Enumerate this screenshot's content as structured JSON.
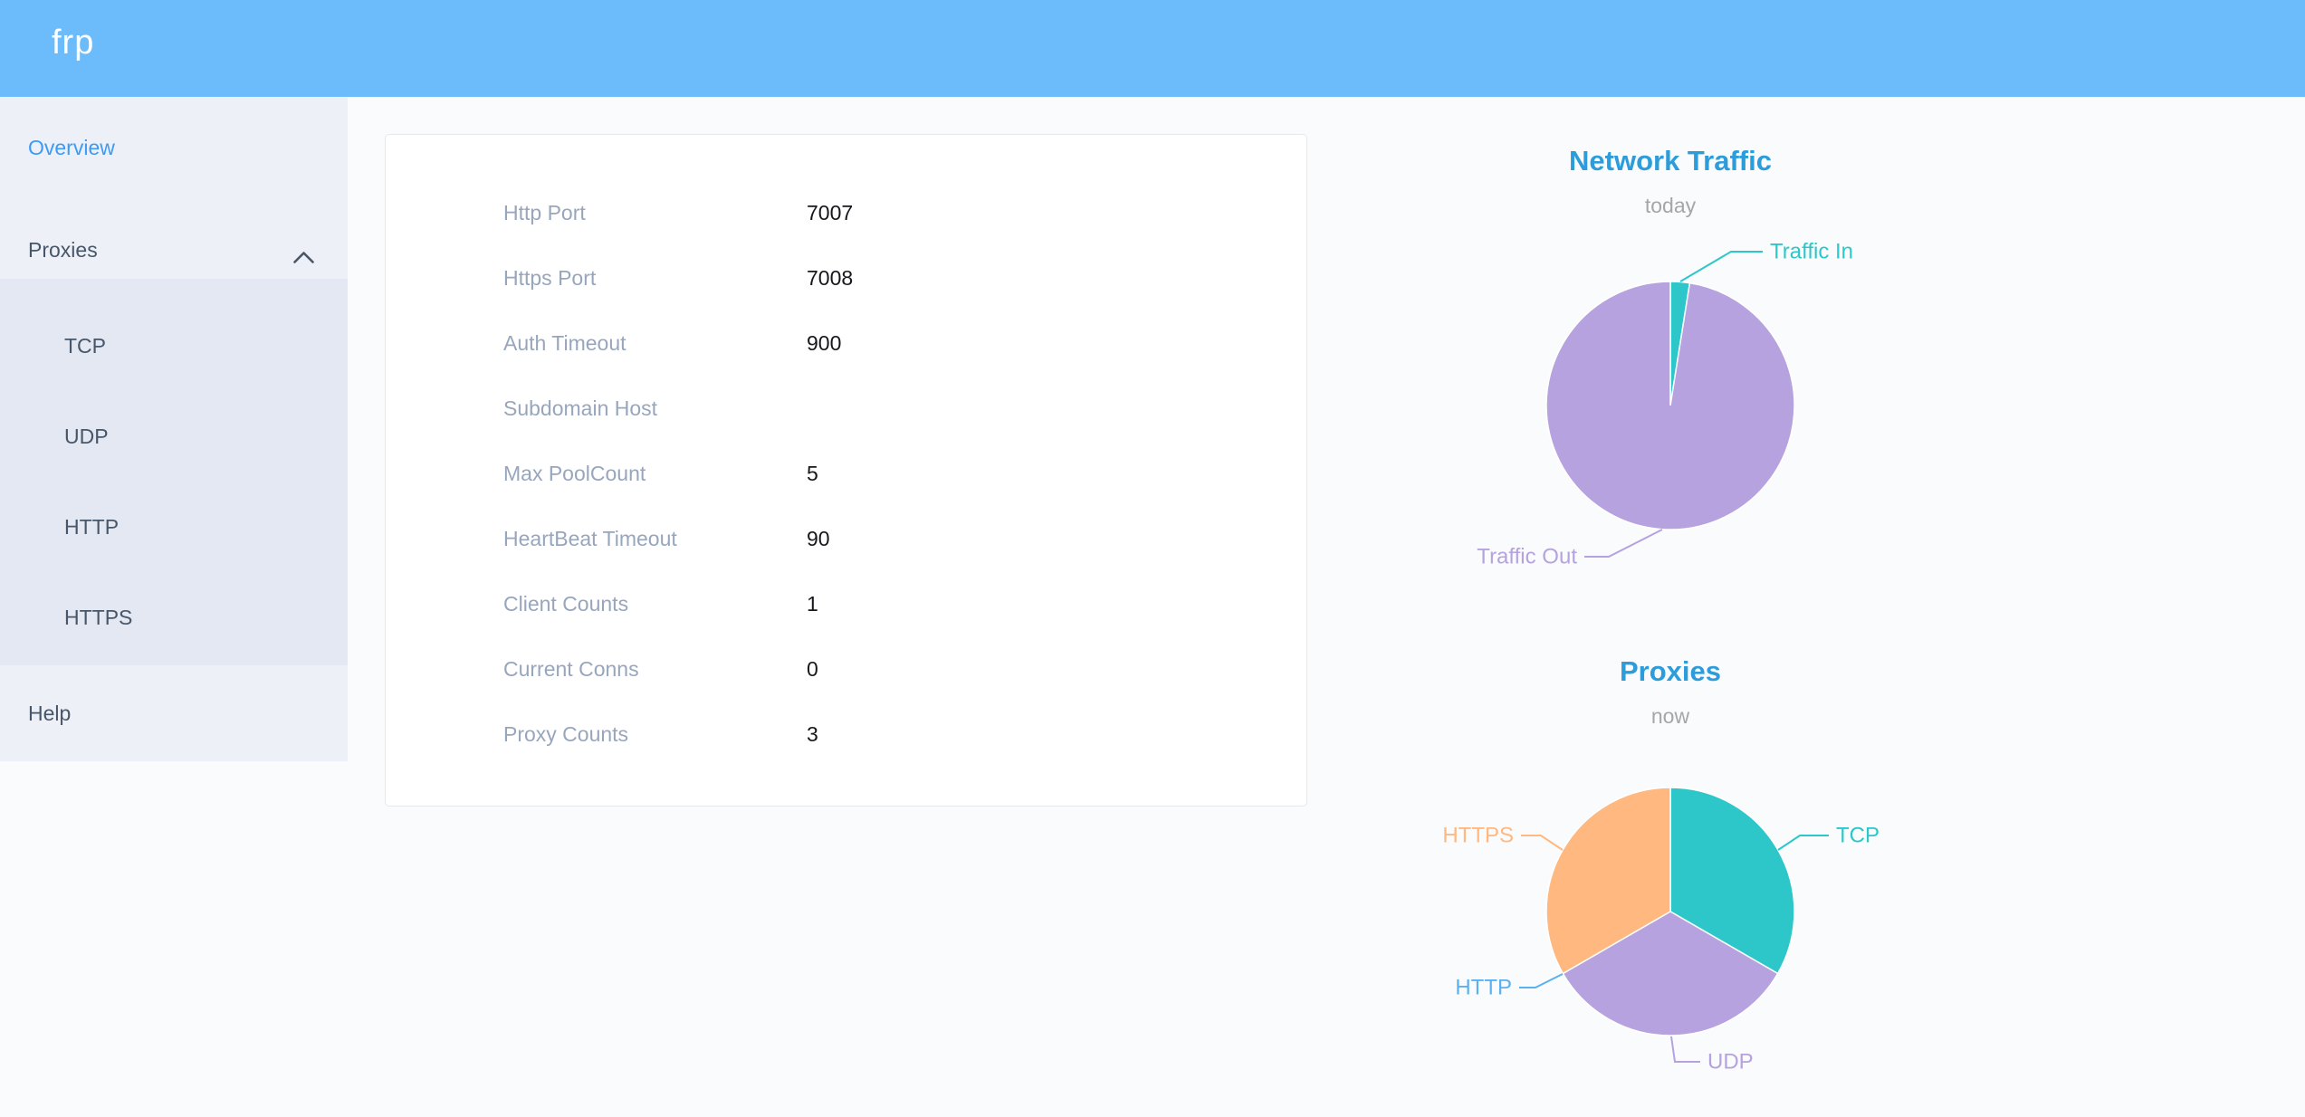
{
  "header": {
    "logo": "frp"
  },
  "sidebar": {
    "overview_label": "Overview",
    "proxies_label": "Proxies",
    "proxies_expanded": true,
    "children": [
      "TCP",
      "UDP",
      "HTTP",
      "HTTPS"
    ],
    "help_label": "Help"
  },
  "card": {
    "rows": [
      {
        "label": "Http Port",
        "value": "7007"
      },
      {
        "label": "Https Port",
        "value": "7008"
      },
      {
        "label": "Auth Timeout",
        "value": "900"
      },
      {
        "label": "Subdomain Host",
        "value": ""
      },
      {
        "label": "Max PoolCount",
        "value": "5"
      },
      {
        "label": "HeartBeat Timeout",
        "value": "90"
      },
      {
        "label": "Client Counts",
        "value": "1"
      },
      {
        "label": "Current Conns",
        "value": "0"
      },
      {
        "label": "Proxy Counts",
        "value": "3"
      }
    ]
  },
  "chart_data": [
    {
      "type": "pie",
      "title": "Network Traffic",
      "subtitle": "today",
      "legend_position": "callout-labels",
      "values_are": "percent-estimated-from-arc",
      "slices": [
        {
          "label": "Traffic In",
          "value": 2.5,
          "color": "#2ec7c9"
        },
        {
          "label": "Traffic Out",
          "value": 97.5,
          "color": "#b6a2de"
        }
      ]
    },
    {
      "type": "pie",
      "title": "Proxies",
      "subtitle": "now",
      "legend_position": "callout-labels",
      "values_are": "proxy-counts",
      "slices": [
        {
          "label": "TCP",
          "value": 1,
          "color": "#2ec7c9"
        },
        {
          "label": "UDP",
          "value": 1,
          "color": "#b6a2de"
        },
        {
          "label": "HTTP",
          "value": 0,
          "color": "#5ab1ef"
        },
        {
          "label": "HTTPS",
          "value": 1,
          "color": "#ffb980"
        }
      ]
    }
  ],
  "colors": {
    "header_bg": "#6cbcfc",
    "sidebar_bg": "#edf1f7",
    "submenu_bg": "#e3e8f2",
    "active_link": "#3d9af5",
    "sidebar_text": "#475669",
    "card_label": "#98a6bd",
    "card_value": "#17181c",
    "chart_title": "#2d9cdb",
    "chart_subtitle": "#a6a6a6"
  }
}
